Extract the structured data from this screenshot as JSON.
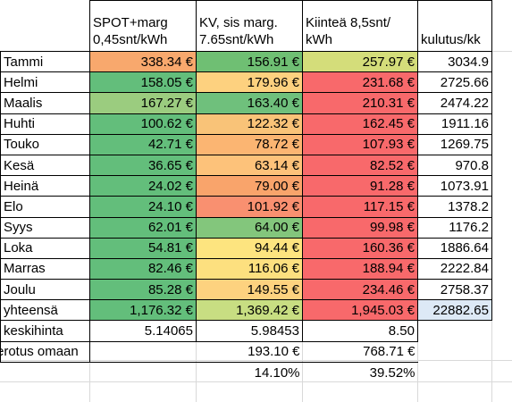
{
  "headers": {
    "spot": "SPOT+marg 0,45snt/kWh",
    "kv": "KV, sis marg. 7.65snt/kWh",
    "fixed": "Kiinteä 8,5snt/ kWh",
    "usage": "kulutus/kk"
  },
  "months": [
    {
      "name": "Tammi",
      "spot": "338.34 €",
      "kv": "156.91 €",
      "fixed": "257.97 €",
      "usage": "3034.9",
      "spot_color": "#f8a86d",
      "kv_color": "#6fbf73",
      "fixed_color": "#d4dd7a"
    },
    {
      "name": "Helmi",
      "spot": "158.05 €",
      "kv": "179.96 €",
      "fixed": "231.68 €",
      "usage": "2725.66",
      "spot_color": "#63be7b",
      "kv_color": "#fdd17f",
      "fixed_color": "#f8696b"
    },
    {
      "name": "Maalis",
      "spot": "167.27 €",
      "kv": "163.40 €",
      "fixed": "210.31 €",
      "usage": "2474.22",
      "spot_color": "#9bcc7f",
      "kv_color": "#6fc07c",
      "fixed_color": "#f8696b"
    },
    {
      "name": "Huhti",
      "spot": "100.62 €",
      "kv": "122.32 €",
      "fixed": "162.45 €",
      "usage": "1911.16",
      "spot_color": "#63be7b",
      "kv_color": "#f9c378",
      "fixed_color": "#f8696b"
    },
    {
      "name": "Touko",
      "spot": "42.71 €",
      "kv": "78.72 €",
      "fixed": "107.93 €",
      "usage": "1269.75",
      "spot_color": "#63be7b",
      "kv_color": "#fbb572",
      "fixed_color": "#f8696b"
    },
    {
      "name": "Kesä",
      "spot": "36.65 €",
      "kv": "63.14 €",
      "fixed": "82.52 €",
      "usage": "970.8",
      "spot_color": "#63be7b",
      "kv_color": "#fdc27a",
      "fixed_color": "#f8696b"
    },
    {
      "name": "Heinä",
      "spot": "24.02 €",
      "kv": "79.00 €",
      "fixed": "91.28 €",
      "usage": "1073.91",
      "spot_color": "#63be7b",
      "kv_color": "#f9a46b",
      "fixed_color": "#f8696b"
    },
    {
      "name": "Elo",
      "spot": "24.10 €",
      "kv": "101.92 €",
      "fixed": "117.15 €",
      "usage": "1378.2",
      "spot_color": "#63be7b",
      "kv_color": "#f99070",
      "fixed_color": "#f8696b"
    },
    {
      "name": "Syys",
      "spot": "62.01 €",
      "kv": "64.00 €",
      "fixed": "99.98 €",
      "usage": "1176.2",
      "spot_color": "#63be7b",
      "kv_color": "#83c67c",
      "fixed_color": "#f8696b"
    },
    {
      "name": "Loka",
      "spot": "54.81 €",
      "kv": "94.44 €",
      "fixed": "160.36 €",
      "usage": "1886.64",
      "spot_color": "#63be7b",
      "kv_color": "#fde47f",
      "fixed_color": "#f8696b"
    },
    {
      "name": "Marras",
      "spot": "82.46 €",
      "kv": "116.06 €",
      "fixed": "188.94 €",
      "usage": "2222.84",
      "spot_color": "#63be7b",
      "kv_color": "#fde07f",
      "fixed_color": "#f8696b"
    },
    {
      "name": "Joulu",
      "spot": "85.28 €",
      "kv": "149.55 €",
      "fixed": "234.46 €",
      "usage": "2758.37",
      "spot_color": "#63be7b",
      "kv_color": "#fdd27f",
      "fixed_color": "#f8696b"
    }
  ],
  "total": {
    "label": "yhteensä",
    "spot": "1,176.32 €",
    "kv": "1,369.42 €",
    "fixed": "1,945.03 €",
    "usage": "22882.65",
    "spot_color": "#63be7b",
    "kv_color": "#c8de82",
    "fixed_color": "#f8696b",
    "usage_color": "#dde9f6"
  },
  "average": {
    "label": "keskihinta",
    "spot": "5.14065",
    "kv": "5.98453",
    "fixed": "8.50"
  },
  "difference": {
    "label": "erotus omaan",
    "kv": "193.10 €",
    "fixed": "768.71  €"
  },
  "percent": {
    "kv": "14.10%",
    "fixed": "39.52%"
  }
}
